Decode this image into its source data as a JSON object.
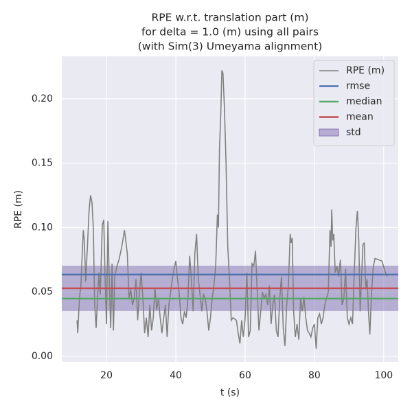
{
  "chart_data": {
    "type": "line",
    "title": [
      "RPE w.r.t. translation part (m)",
      "for delta = 1.0 (m) using all pairs",
      "(with Sim(3) Umeyama alignment)"
    ],
    "x_label": "t (s)",
    "y_label": "RPE (m)",
    "xlim": [
      7.1,
      104.2
    ],
    "ylim": [
      -0.0043,
      0.233
    ],
    "xticks": [
      20,
      40,
      60,
      80,
      100
    ],
    "yticks": [
      {
        "value": 0,
        "label": "0.00"
      },
      0.05,
      {
        "value": 0.1,
        "label": "0.10"
      },
      0.15,
      {
        "value": 0.2,
        "label": "0.20"
      }
    ],
    "grid": true,
    "legend": "upper right",
    "series": [
      {
        "name": "RPE (m)",
        "color": "#808080",
        "x": [
          11.5,
          11.7,
          12.2,
          12.6,
          13.0,
          13.3,
          13.6,
          14.0,
          14.5,
          15.0,
          15.4,
          15.8,
          16.2,
          16.6,
          17.0,
          17.4,
          17.8,
          18.2,
          18.8,
          19.2,
          19.6,
          20.0,
          20.4,
          20.8,
          21.2,
          21.6,
          22.0,
          22.4,
          23.0,
          23.6,
          24.4,
          25.2,
          26.0,
          26.5,
          27.0,
          27.5,
          28.0,
          28.5,
          29.0,
          29.5,
          30.0,
          30.5,
          31.0,
          31.5,
          32.0,
          32.5,
          33.0,
          33.5,
          34.0,
          34.5,
          35.0,
          35.5,
          36.0,
          36.5,
          37.0,
          37.5,
          38.0,
          38.5,
          39.0,
          39.5,
          40.0,
          40.5,
          41.0,
          41.5,
          42.0,
          42.5,
          43.0,
          43.5,
          44.0,
          44.5,
          45.0,
          45.5,
          46.0,
          46.5,
          47.0,
          47.5,
          48.0,
          48.5,
          49.0,
          49.5,
          50.0,
          50.5,
          51.0,
          51.5,
          52.0,
          52.3,
          52.6,
          53.0,
          53.3,
          53.6,
          54.0,
          54.5,
          55.0,
          55.5,
          56.0,
          56.5,
          57.0,
          57.5,
          58.0,
          58.5,
          59.0,
          59.5,
          60.0,
          60.5,
          61.0,
          61.5,
          62.0,
          62.5,
          63.0,
          63.5,
          64.0,
          64.5,
          65.0,
          65.5,
          66.0,
          66.5,
          67.0,
          67.5,
          68.0,
          68.5,
          69.0,
          69.5,
          70.0,
          70.5,
          71.0,
          71.5,
          72.0,
          72.5,
          73.0,
          73.3,
          73.6,
          74.0,
          74.5,
          75.0,
          75.5,
          76.0,
          76.5,
          77.0,
          77.5,
          78.0,
          78.5,
          79.0,
          79.5,
          80.0,
          80.5,
          81.0,
          81.5,
          82.0,
          82.5,
          83.0,
          83.5,
          84.0,
          84.5,
          84.8,
          85.0,
          85.3,
          85.6,
          86.0,
          86.5,
          87.0,
          87.5,
          88.0,
          88.5,
          89.0,
          89.5,
          90.0,
          90.5,
          91.0,
          91.5,
          92.0,
          92.4,
          92.8,
          93.2,
          93.6,
          94.0,
          94.4,
          94.8,
          95.2,
          95.6,
          96.0,
          96.5,
          97.0,
          97.5,
          98.5,
          99.5,
          100.5,
          101.0
        ],
        "values": [
          0.028,
          0.018,
          0.045,
          0.055,
          0.08,
          0.098,
          0.09,
          0.058,
          0.085,
          0.115,
          0.125,
          0.12,
          0.1,
          0.04,
          0.022,
          0.045,
          0.065,
          0.048,
          0.102,
          0.106,
          0.06,
          0.025,
          0.105,
          0.06,
          0.022,
          0.072,
          0.02,
          0.062,
          0.07,
          0.075,
          0.085,
          0.098,
          0.08,
          0.045,
          0.052,
          0.04,
          0.045,
          0.06,
          0.028,
          0.05,
          0.065,
          0.045,
          0.018,
          0.03,
          0.015,
          0.04,
          0.02,
          0.03,
          0.053,
          0.036,
          0.045,
          0.03,
          0.018,
          0.03,
          0.04,
          0.015,
          0.04,
          0.05,
          0.06,
          0.068,
          0.074,
          0.06,
          0.048,
          0.03,
          0.025,
          0.035,
          0.03,
          0.045,
          0.078,
          0.06,
          0.035,
          0.08,
          0.095,
          0.06,
          0.048,
          0.035,
          0.048,
          0.045,
          0.035,
          0.02,
          0.03,
          0.045,
          0.055,
          0.07,
          0.11,
          0.1,
          0.16,
          0.19,
          0.222,
          0.22,
          0.195,
          0.15,
          0.085,
          0.06,
          0.028,
          0.03,
          0.029,
          0.028,
          0.018,
          0.01,
          0.028,
          0.015,
          0.03,
          0.065,
          0.015,
          0.02,
          0.072,
          0.07,
          0.082,
          0.05,
          0.02,
          0.035,
          0.05,
          0.045,
          0.048,
          0.04,
          0.055,
          0.025,
          0.04,
          0.048,
          0.02,
          0.015,
          0.045,
          0.062,
          0.022,
          0.008,
          0.04,
          0.055,
          0.095,
          0.088,
          0.092,
          0.035,
          0.015,
          0.025,
          0.013,
          0.045,
          0.035,
          0.046,
          0.03,
          0.02,
          0.018,
          0.015,
          0.022,
          0.025,
          0.006,
          0.03,
          0.033,
          0.025,
          0.03,
          0.04,
          0.045,
          0.05,
          0.098,
          0.085,
          0.114,
          0.09,
          0.095,
          0.065,
          0.07,
          0.062,
          0.075,
          0.04,
          0.045,
          0.068,
          0.03,
          0.025,
          0.03,
          0.025,
          0.065,
          0.1,
          0.113,
          0.09,
          0.035,
          0.06,
          0.087,
          0.088,
          0.052,
          0.06,
          0.035,
          0.017,
          0.05,
          0.07,
          0.076,
          0.075,
          0.074,
          0.065,
          0.062
        ]
      }
    ],
    "hlines": [
      {
        "name": "rmse",
        "color": "#4c72b0",
        "value": 0.0635
      },
      {
        "name": "median",
        "color": "#55a868",
        "value": 0.0448
      },
      {
        "name": "mean",
        "color": "#c44e52",
        "value": 0.0528
      }
    ],
    "band": {
      "name": "std",
      "color": "#8172b2",
      "center": 0.0528,
      "value": 0.0176
    }
  }
}
